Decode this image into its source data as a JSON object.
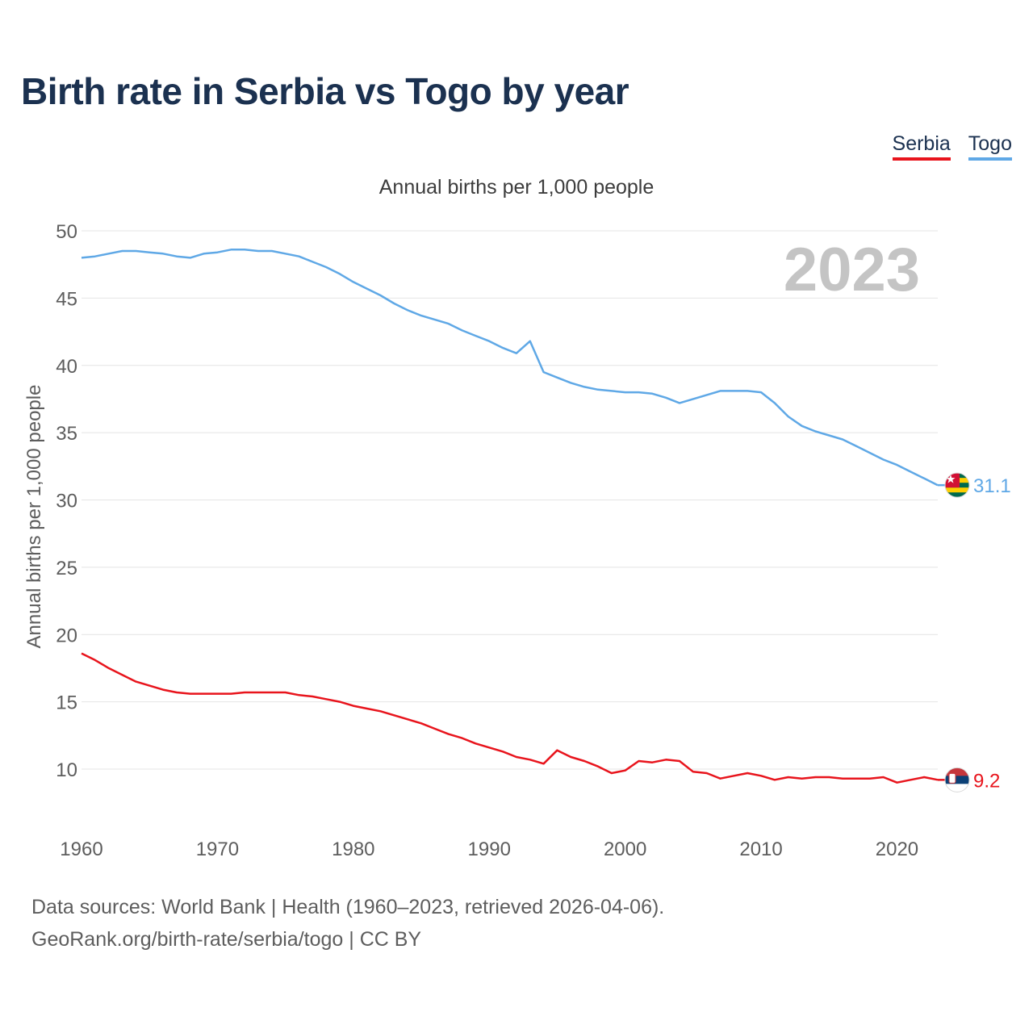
{
  "title": "Birth rate in Serbia vs Togo by year",
  "legend": {
    "items": [
      {
        "label": "Serbia",
        "color": "#e8141c"
      },
      {
        "label": "Togo",
        "color": "#5fa8e6"
      }
    ]
  },
  "footer": {
    "sources": "Data sources: World Bank | Health (1960–2023, retrieved 2026-04-06).",
    "credit": "GeoRank.org/birth-rate/serbia/togo | CC BY"
  },
  "chart_data": {
    "type": "line",
    "subtitle": "Annual births per 1,000 people",
    "ylabel": "Annual births per 1,000 people",
    "xlabel": "",
    "year_overlay": "2023",
    "xlim": [
      1960,
      2023
    ],
    "ylim": [
      5,
      50
    ],
    "yticks": [
      10,
      15,
      20,
      25,
      30,
      35,
      40,
      45,
      50
    ],
    "xticks": [
      1960,
      1970,
      1980,
      1990,
      2000,
      2010,
      2020
    ],
    "grid": true,
    "x": [
      1960,
      1961,
      1962,
      1963,
      1964,
      1965,
      1966,
      1967,
      1968,
      1969,
      1970,
      1971,
      1972,
      1973,
      1974,
      1975,
      1976,
      1977,
      1978,
      1979,
      1980,
      1981,
      1982,
      1983,
      1984,
      1985,
      1986,
      1987,
      1988,
      1989,
      1990,
      1991,
      1992,
      1993,
      1994,
      1995,
      1996,
      1997,
      1998,
      1999,
      2000,
      2001,
      2002,
      2003,
      2004,
      2005,
      2006,
      2007,
      2008,
      2009,
      2010,
      2011,
      2012,
      2013,
      2014,
      2015,
      2016,
      2017,
      2018,
      2019,
      2020,
      2021,
      2022,
      2023
    ],
    "series": [
      {
        "name": "Togo",
        "color": "#5fa8e6",
        "end_label": "31.1",
        "values": [
          48.0,
          48.1,
          48.3,
          48.5,
          48.5,
          48.4,
          48.3,
          48.1,
          48.0,
          48.3,
          48.4,
          48.6,
          48.6,
          48.5,
          48.5,
          48.3,
          48.1,
          47.7,
          47.3,
          46.8,
          46.2,
          45.7,
          45.2,
          44.6,
          44.1,
          43.7,
          43.4,
          43.1,
          42.6,
          42.2,
          41.8,
          41.3,
          40.9,
          41.8,
          39.5,
          39.1,
          38.7,
          38.4,
          38.2,
          38.1,
          38.0,
          38.0,
          37.9,
          37.6,
          37.2,
          37.5,
          37.8,
          38.1,
          38.1,
          38.1,
          38.0,
          37.2,
          36.2,
          35.5,
          35.1,
          34.8,
          34.5,
          34.0,
          33.5,
          33.0,
          32.6,
          32.1,
          31.6,
          31.1
        ]
      },
      {
        "name": "Serbia",
        "color": "#e8141c",
        "end_label": "9.2",
        "values": [
          18.6,
          18.1,
          17.5,
          17.0,
          16.5,
          16.2,
          15.9,
          15.7,
          15.6,
          15.6,
          15.6,
          15.6,
          15.7,
          15.7,
          15.7,
          15.7,
          15.5,
          15.4,
          15.2,
          15.0,
          14.7,
          14.5,
          14.3,
          14.0,
          13.7,
          13.4,
          13.0,
          12.6,
          12.3,
          11.9,
          11.6,
          11.3,
          10.9,
          10.7,
          10.4,
          11.4,
          10.9,
          10.6,
          10.2,
          9.7,
          9.9,
          10.6,
          10.5,
          10.7,
          10.6,
          9.8,
          9.7,
          9.3,
          9.5,
          9.7,
          9.5,
          9.2,
          9.4,
          9.3,
          9.4,
          9.4,
          9.3,
          9.3,
          9.3,
          9.4,
          9.0,
          9.2,
          9.4,
          9.2
        ]
      }
    ]
  }
}
